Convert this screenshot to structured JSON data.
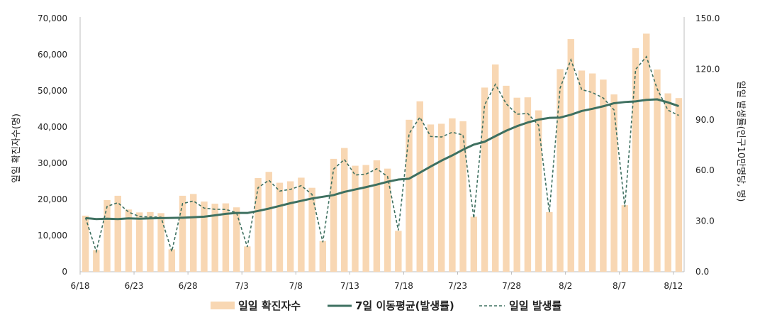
{
  "chart_data": {
    "type": "bar",
    "title": "",
    "ylabel": "일일 확진자수(명)",
    "y2label": "일일 발생률(인구10만명당, 명)",
    "ylim": [
      0,
      70000
    ],
    "y2lim": [
      0,
      150
    ],
    "y_ticks": [
      "0",
      "10,000",
      "20,000",
      "30,000",
      "40,000",
      "50,000",
      "60,000",
      "70,000"
    ],
    "y2_ticks": [
      "0.0",
      "30.0",
      "60.0",
      "90.0",
      "120.0",
      "150.0"
    ],
    "x_tick_labels": [
      {
        "index": 0,
        "label": "6/18"
      },
      {
        "index": 5,
        "label": "6/23"
      },
      {
        "index": 10,
        "label": "6/28"
      },
      {
        "index": 15,
        "label": "7/3"
      },
      {
        "index": 20,
        "label": "7/8"
      },
      {
        "index": 25,
        "label": "7/13"
      },
      {
        "index": 30,
        "label": "7/18"
      },
      {
        "index": 35,
        "label": "7/23"
      },
      {
        "index": 40,
        "label": "7/28"
      },
      {
        "index": 45,
        "label": "8/2"
      },
      {
        "index": 50,
        "label": "8/7"
      },
      {
        "index": 55,
        "label": "8/12"
      }
    ],
    "legend_position": "bottom",
    "series": [
      {
        "name": "일일 확진자수",
        "type": "bar",
        "axis": "left",
        "color": "#f8d7b3",
        "values": [
          15500,
          6000,
          19800,
          21000,
          17200,
          16400,
          16500,
          16200,
          6200,
          21000,
          21500,
          19400,
          18800,
          18900,
          17800,
          7000,
          25900,
          27600,
          24600,
          25000,
          26000,
          23200,
          8500,
          31200,
          34200,
          29300,
          29500,
          30800,
          28500,
          11300,
          42000,
          47100,
          40700,
          40900,
          42400,
          41600,
          15200,
          50900,
          57300,
          51400,
          48100,
          48200,
          44600,
          16500,
          56000,
          64300,
          55600,
          54800,
          53100,
          49000,
          18400,
          61800,
          65800,
          55900,
          49300,
          48000
        ]
      },
      {
        "name": "7일 이동평균(발생률)",
        "type": "line",
        "axis": "right",
        "color": "#3e7060",
        "values": [
          31.8,
          31.2,
          31.4,
          31.2,
          31.6,
          31.4,
          31.6,
          31.8,
          31.9,
          32.0,
          32.3,
          32.6,
          33.4,
          34.3,
          34.8,
          34.8,
          36.0,
          37.4,
          39.0,
          40.6,
          42.0,
          43.4,
          44.4,
          45.4,
          47.3,
          48.7,
          50.1,
          51.6,
          53.3,
          54.6,
          55.1,
          58.7,
          62.3,
          65.8,
          68.9,
          72.3,
          75.3,
          77.0,
          80.3,
          83.5,
          86.2,
          88.4,
          90.1,
          91.1,
          91.3,
          93.0,
          95.2,
          96.5,
          98.0,
          99.8,
          100.5,
          100.9,
          101.8,
          102.1,
          100.3,
          98.1
        ]
      },
      {
        "name": "일일 발생률",
        "type": "line",
        "dashed": true,
        "axis": "right",
        "color": "#3e7060",
        "values": [
          32.0,
          12.0,
          38.7,
          40.9,
          35.3,
          32.7,
          32.5,
          32.3,
          12.0,
          40.4,
          41.9,
          37.7,
          37.0,
          36.9,
          35.0,
          14.7,
          49.8,
          54.2,
          47.8,
          48.8,
          51.0,
          45.8,
          17.5,
          60.8,
          66.5,
          57.3,
          57.8,
          61.0,
          56.4,
          24.5,
          81.8,
          91.5,
          80.1,
          79.8,
          82.6,
          81.0,
          31.7,
          98.8,
          111.0,
          99.5,
          93.3,
          93.7,
          86.8,
          35.2,
          108.8,
          125.5,
          107.9,
          106.1,
          102.9,
          95.8,
          38.4,
          119.8,
          127.4,
          108.3,
          95.7,
          92.6
        ]
      }
    ]
  }
}
